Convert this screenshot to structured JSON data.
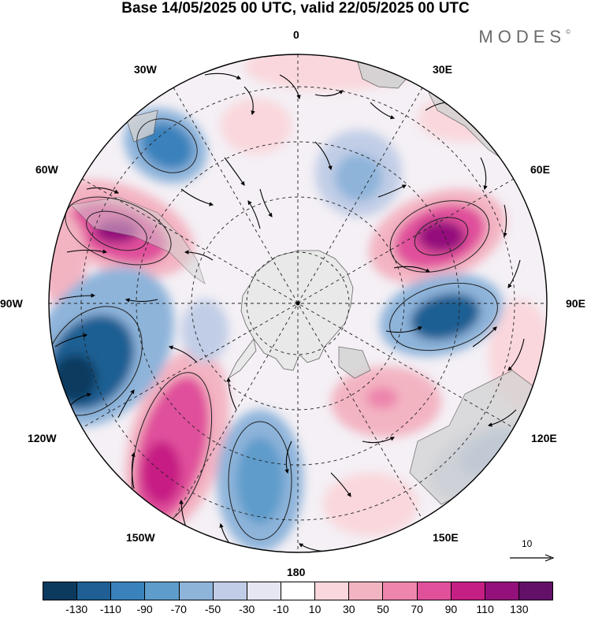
{
  "title": "Base 14/05/2025 00 UTC, valid 22/05/2025 00 UTC",
  "brand": "MODES",
  "brand_mark": "©",
  "longitude_labels": {
    "top": "0",
    "top_right": "30E",
    "right_upper": "60E",
    "right": "90E",
    "right_lower": "120E",
    "bottom_right": "150E",
    "bottom": "180",
    "bottom_left": "150W",
    "left_lower": "120W",
    "left": "90W",
    "left_upper": "60W",
    "top_left": "30W"
  },
  "vector_scale": {
    "label": "10"
  },
  "colorbar": {
    "colors": [
      "#0b3a5e",
      "#1f5f93",
      "#3a82bc",
      "#5e9ccb",
      "#8eb4da",
      "#c1cde6",
      "#e6e5f2",
      "#ffffff",
      "#f9d7dc",
      "#f3b4c2",
      "#ee85ad",
      "#e0509b",
      "#c61f84",
      "#94107b",
      "#621068"
    ],
    "tick_labels": [
      "-130",
      "-110",
      "-90",
      "-70",
      "-50",
      "-30",
      "-10",
      "10",
      "30",
      "50",
      "70",
      "90",
      "110",
      "130"
    ]
  },
  "map": {
    "projection": "south-polar-stereographic",
    "field": "wind anomaly with vectors",
    "icons": [
      "antarctica-landmass",
      "wind-vector-arrow"
    ]
  }
}
